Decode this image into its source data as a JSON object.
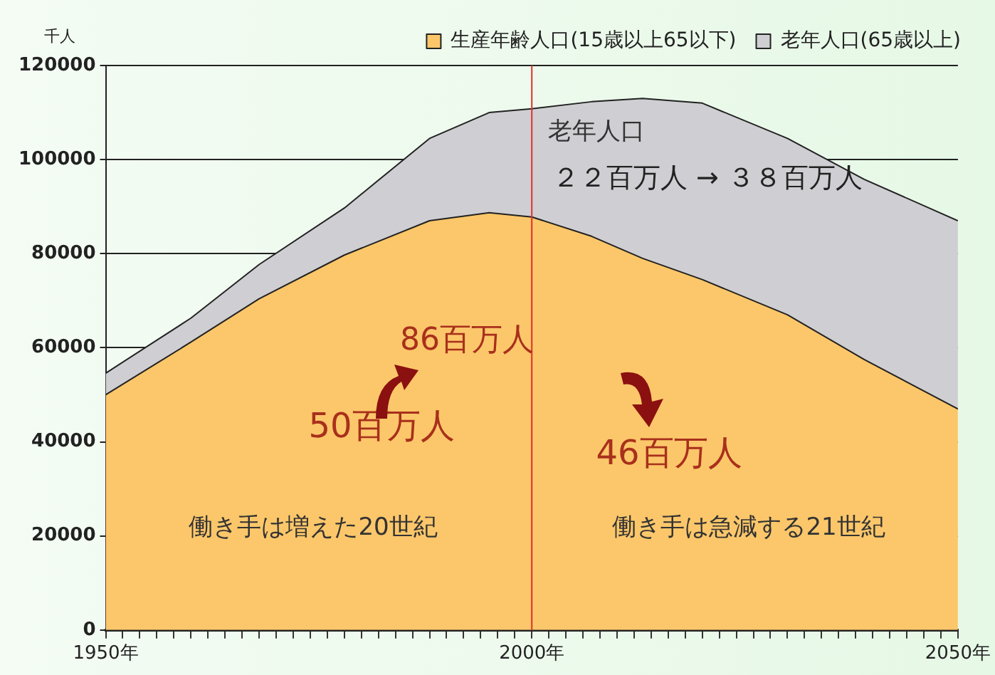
{
  "chart_data": {
    "type": "area",
    "stacked": true,
    "ylabel": "千人",
    "x": [
      1950,
      1960,
      1968,
      1978,
      1988,
      1995,
      2000,
      2007,
      2013,
      2020,
      2030,
      2039,
      2050
    ],
    "series": [
      {
        "name": "生産年齢人口(15歳以上65以下)",
        "color": "#fcc76a",
        "values": [
          50000,
          61200,
          70400,
          79700,
          87000,
          88700,
          87800,
          83700,
          79000,
          74500,
          67000,
          57500,
          47000
        ]
      },
      {
        "name": "老年人口(65歳以上)",
        "color": "#cfcfd3",
        "values": [
          4600,
          5100,
          7300,
          10000,
          17500,
          21300,
          23000,
          28600,
          34000,
          37500,
          37500,
          38300,
          40000
        ]
      }
    ],
    "xlim": [
      1950,
      2050
    ],
    "xticks": [
      {
        "value": 1950,
        "label": "1950年"
      },
      {
        "value": 1952,
        "label": null
      },
      {
        "value": 1954,
        "label": null
      },
      {
        "value": 1956,
        "label": null
      },
      {
        "value": 1958,
        "label": null
      },
      {
        "value": 1960,
        "label": null
      },
      {
        "value": 1962,
        "label": null
      },
      {
        "value": 1964,
        "label": null
      },
      {
        "value": 1966,
        "label": null
      },
      {
        "value": 1968,
        "label": null
      },
      {
        "value": 1970,
        "label": null
      },
      {
        "value": 1972,
        "label": null
      },
      {
        "value": 1974,
        "label": null
      },
      {
        "value": 1976,
        "label": null
      },
      {
        "value": 1978,
        "label": null
      },
      {
        "value": 1980,
        "label": null
      },
      {
        "value": 1982,
        "label": null
      },
      {
        "value": 1984,
        "label": null
      },
      {
        "value": 1986,
        "label": null
      },
      {
        "value": 1988,
        "label": null
      },
      {
        "value": 1990,
        "label": null
      },
      {
        "value": 1992,
        "label": null
      },
      {
        "value": 1994,
        "label": null
      },
      {
        "value": 1996,
        "label": null
      },
      {
        "value": 1998,
        "label": null
      },
      {
        "value": 2000,
        "label": "2000年"
      },
      {
        "value": 2002,
        "label": null
      },
      {
        "value": 2004,
        "label": null
      },
      {
        "value": 2006,
        "label": null
      },
      {
        "value": 2008,
        "label": null
      },
      {
        "value": 2010,
        "label": null
      },
      {
        "value": 2012,
        "label": null
      },
      {
        "value": 2014,
        "label": null
      },
      {
        "value": 2016,
        "label": null
      },
      {
        "value": 2018,
        "label": null
      },
      {
        "value": 2020,
        "label": null
      },
      {
        "value": 2022,
        "label": null
      },
      {
        "value": 2024,
        "label": null
      },
      {
        "value": 2026,
        "label": null
      },
      {
        "value": 2028,
        "label": null
      },
      {
        "value": 2030,
        "label": null
      },
      {
        "value": 2032,
        "label": null
      },
      {
        "value": 2034,
        "label": null
      },
      {
        "value": 2036,
        "label": null
      },
      {
        "value": 2038,
        "label": null
      },
      {
        "value": 2040,
        "label": null
      },
      {
        "value": 2042,
        "label": null
      },
      {
        "value": 2044,
        "label": null
      },
      {
        "value": 2046,
        "label": null
      },
      {
        "value": 2048,
        "label": null
      },
      {
        "value": 2050,
        "label": "2050年"
      }
    ],
    "ylim": [
      0,
      120000
    ],
    "yticks": [
      0,
      20000,
      40000,
      60000,
      80000,
      100000,
      120000
    ],
    "grid": "y",
    "legend": "top right",
    "marker": "none",
    "ref_lines": [
      {
        "axis": "x",
        "value": 2000,
        "color": "#e0302a"
      }
    ],
    "annotations": [
      "老年人口",
      "２２百万人 → ３８百万人",
      "86百万人",
      "50百万人",
      "46百万人",
      "働き手は増えた20世紀",
      "働き手は急減する21世紀"
    ]
  }
}
